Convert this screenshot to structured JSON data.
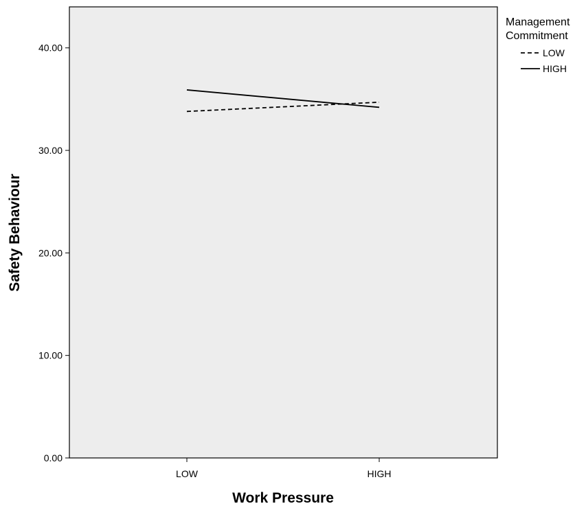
{
  "chart_data": {
    "type": "line",
    "categories": [
      "LOW",
      "HIGH"
    ],
    "series": [
      {
        "name": "LOW",
        "values": [
          33.8,
          34.7
        ],
        "dash": "dashed",
        "color": "#000000"
      },
      {
        "name": "HIGH",
        "values": [
          35.9,
          34.2
        ],
        "dash": "solid",
        "color": "#000000"
      }
    ],
    "title": "",
    "xlabel": "Work Pressure",
    "ylabel": "Safety Behaviour",
    "ylim": [
      0,
      44
    ],
    "yticks": [
      "0.00",
      "10.00",
      "20.00",
      "30.00",
      "40.00"
    ],
    "ytick_values": [
      0,
      10,
      20,
      30,
      40
    ],
    "legend": {
      "title_lines": [
        "Management",
        "Commitment"
      ],
      "placement": "right"
    },
    "plot_background": "#ededed",
    "grid": false
  }
}
